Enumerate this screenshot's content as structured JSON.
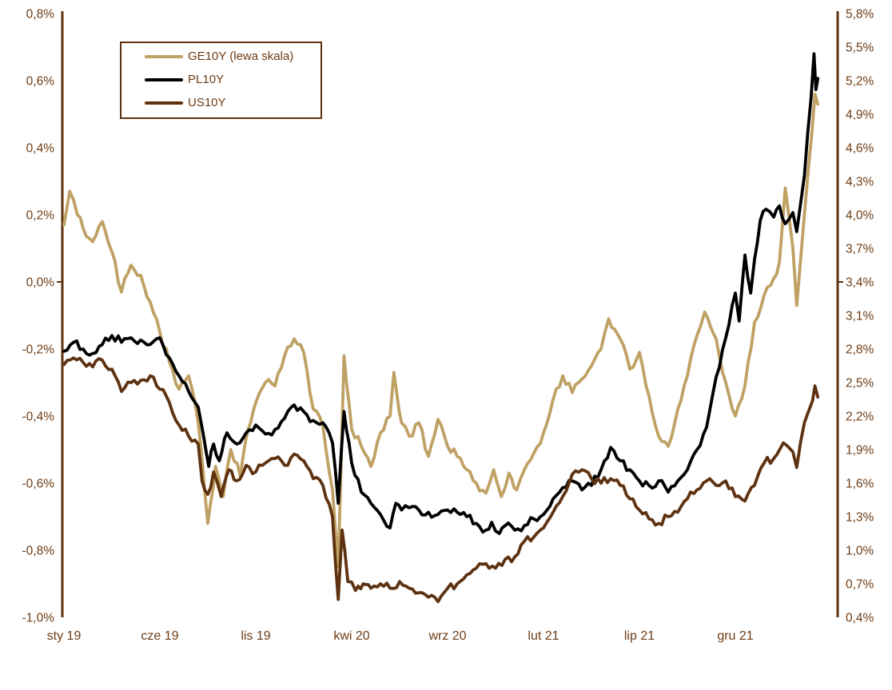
{
  "chart_data": {
    "type": "line",
    "title": "",
    "colors": {
      "axis": "#5E3210",
      "text": "#6E3C14",
      "background": "#FFFFFF"
    },
    "left_axis": {
      "labels": [
        "0,8%",
        "0,6%",
        "0,4%",
        "0,2%",
        "0,0%",
        "-0,2%",
        "-0,4%",
        "-0,6%",
        "-0,8%",
        "-1,0%"
      ],
      "max": 0.8,
      "min": -1.0,
      "step": 0.2
    },
    "right_axis": {
      "labels": [
        "5,8%",
        "5,5%",
        "5,2%",
        "4,9%",
        "4,6%",
        "4,3%",
        "4,0%",
        "3,7%",
        "3,4%",
        "3,1%",
        "2,8%",
        "2,5%",
        "2,2%",
        "1,9%",
        "1,6%",
        "1,3%",
        "1,0%",
        "0,7%",
        "0,4%"
      ],
      "max": 5.8,
      "min": 0.4,
      "step": 0.3
    },
    "x_axis": {
      "labels": [
        "sty 19",
        "cze 19",
        "lis 19",
        "kwi 20",
        "wrz 20",
        "lut 21",
        "lip 21",
        "gru 21"
      ],
      "tick_months": [
        0,
        5,
        10,
        15,
        20,
        25,
        30,
        35
      ],
      "start": "sty 19",
      "end_month_offset": 39.3
    },
    "legend": [
      {
        "label": "GE10Y (lewa skala)",
        "color": "#BFA164"
      },
      {
        "label": "PL10Y",
        "color": "#000000"
      },
      {
        "label": "US10Y",
        "color": "#5E3210"
      }
    ],
    "series": [
      {
        "name": "GE10Y",
        "axis": "left",
        "color": "#BFA164",
        "points": [
          [
            0,
            0.17
          ],
          [
            0.3,
            0.27
          ],
          [
            0.7,
            0.2
          ],
          [
            1,
            0.16
          ],
          [
            1.5,
            0.12
          ],
          [
            2,
            0.18
          ],
          [
            2.5,
            0.09
          ],
          [
            3,
            -0.03
          ],
          [
            3.5,
            0.05
          ],
          [
            4,
            0.02
          ],
          [
            4.5,
            -0.06
          ],
          [
            5,
            -0.15
          ],
          [
            5.5,
            -0.24
          ],
          [
            6,
            -0.32
          ],
          [
            6.5,
            -0.28
          ],
          [
            7,
            -0.42
          ],
          [
            7.5,
            -0.72
          ],
          [
            7.9,
            -0.55
          ],
          [
            8.3,
            -0.64
          ],
          [
            8.7,
            -0.5
          ],
          [
            9.2,
            -0.58
          ],
          [
            9.6,
            -0.44
          ],
          [
            10,
            -0.36
          ],
          [
            10.5,
            -0.3
          ],
          [
            11,
            -0.31
          ],
          [
            11.5,
            -0.22
          ],
          [
            12,
            -0.17
          ],
          [
            12.5,
            -0.21
          ],
          [
            13,
            -0.38
          ],
          [
            13.5,
            -0.43
          ],
          [
            14,
            -0.62
          ],
          [
            14.3,
            -0.85
          ],
          [
            14.6,
            -0.22
          ],
          [
            15,
            -0.44
          ],
          [
            15.5,
            -0.49
          ],
          [
            16,
            -0.55
          ],
          [
            16.5,
            -0.45
          ],
          [
            17,
            -0.4
          ],
          [
            17.2,
            -0.27
          ],
          [
            17.6,
            -0.42
          ],
          [
            18,
            -0.46
          ],
          [
            18.5,
            -0.42
          ],
          [
            19,
            -0.52
          ],
          [
            19.5,
            -0.41
          ],
          [
            20,
            -0.49
          ],
          [
            20.5,
            -0.52
          ],
          [
            21,
            -0.56
          ],
          [
            21.5,
            -0.6
          ],
          [
            22,
            -0.63
          ],
          [
            22.4,
            -0.56
          ],
          [
            22.8,
            -0.64
          ],
          [
            23.2,
            -0.57
          ],
          [
            23.6,
            -0.62
          ],
          [
            24,
            -0.56
          ],
          [
            24.5,
            -0.51
          ],
          [
            25,
            -0.45
          ],
          [
            25.5,
            -0.35
          ],
          [
            26,
            -0.28
          ],
          [
            26.5,
            -0.33
          ],
          [
            27,
            -0.29
          ],
          [
            27.5,
            -0.25
          ],
          [
            28,
            -0.2
          ],
          [
            28.4,
            -0.11
          ],
          [
            29,
            -0.17
          ],
          [
            29.5,
            -0.26
          ],
          [
            30,
            -0.21
          ],
          [
            30.5,
            -0.34
          ],
          [
            31,
            -0.46
          ],
          [
            31.5,
            -0.49
          ],
          [
            32,
            -0.38
          ],
          [
            32.5,
            -0.28
          ],
          [
            33,
            -0.16
          ],
          [
            33.4,
            -0.09
          ],
          [
            34,
            -0.17
          ],
          [
            34.5,
            -0.3
          ],
          [
            35,
            -0.4
          ],
          [
            35.5,
            -0.31
          ],
          [
            36,
            -0.12
          ],
          [
            36.5,
            -0.04
          ],
          [
            37,
            0.01
          ],
          [
            37.3,
            0.06
          ],
          [
            37.6,
            0.28
          ],
          [
            38,
            0.1
          ],
          [
            38.2,
            -0.07
          ],
          [
            38.6,
            0.2
          ],
          [
            39,
            0.45
          ],
          [
            39.15,
            0.56
          ],
          [
            39.3,
            0.53
          ]
        ]
      },
      {
        "name": "PL10Y",
        "axis": "right",
        "color": "#000000",
        "points": [
          [
            0,
            2.78
          ],
          [
            0.5,
            2.86
          ],
          [
            1,
            2.8
          ],
          [
            1.5,
            2.76
          ],
          [
            2,
            2.84
          ],
          [
            2.5,
            2.92
          ],
          [
            3,
            2.86
          ],
          [
            3.5,
            2.9
          ],
          [
            4,
            2.88
          ],
          [
            4.5,
            2.84
          ],
          [
            5,
            2.9
          ],
          [
            5.5,
            2.72
          ],
          [
            6,
            2.56
          ],
          [
            6.5,
            2.42
          ],
          [
            7,
            2.28
          ],
          [
            7.3,
            2.0
          ],
          [
            7.55,
            1.75
          ],
          [
            7.8,
            1.95
          ],
          [
            8.1,
            1.8
          ],
          [
            8.5,
            2.05
          ],
          [
            9,
            1.95
          ],
          [
            9.5,
            2.05
          ],
          [
            10,
            2.12
          ],
          [
            10.5,
            2.04
          ],
          [
            11,
            2.08
          ],
          [
            11.5,
            2.18
          ],
          [
            12,
            2.3
          ],
          [
            12.5,
            2.24
          ],
          [
            13,
            2.16
          ],
          [
            13.5,
            2.14
          ],
          [
            14,
            1.96
          ],
          [
            14.3,
            1.42
          ],
          [
            14.6,
            2.24
          ],
          [
            15,
            1.78
          ],
          [
            15.5,
            1.52
          ],
          [
            16,
            1.42
          ],
          [
            16.5,
            1.32
          ],
          [
            17,
            1.2
          ],
          [
            17.3,
            1.42
          ],
          [
            17.6,
            1.36
          ],
          [
            18,
            1.38
          ],
          [
            18.5,
            1.36
          ],
          [
            19,
            1.34
          ],
          [
            19.5,
            1.32
          ],
          [
            20,
            1.36
          ],
          [
            20.5,
            1.34
          ],
          [
            21,
            1.3
          ],
          [
            21.5,
            1.24
          ],
          [
            22,
            1.18
          ],
          [
            22.3,
            1.25
          ],
          [
            22.7,
            1.15
          ],
          [
            23,
            1.22
          ],
          [
            23.5,
            1.18
          ],
          [
            24,
            1.22
          ],
          [
            24.5,
            1.28
          ],
          [
            25,
            1.32
          ],
          [
            25.5,
            1.46
          ],
          [
            26,
            1.56
          ],
          [
            26.5,
            1.62
          ],
          [
            27,
            1.54
          ],
          [
            27.5,
            1.58
          ],
          [
            28,
            1.72
          ],
          [
            28.5,
            1.92
          ],
          [
            29,
            1.8
          ],
          [
            29.5,
            1.72
          ],
          [
            30,
            1.62
          ],
          [
            30.5,
            1.58
          ],
          [
            31,
            1.62
          ],
          [
            31.5,
            1.52
          ],
          [
            32,
            1.62
          ],
          [
            32.5,
            1.72
          ],
          [
            33,
            1.9
          ],
          [
            33.5,
            2.1
          ],
          [
            34,
            2.55
          ],
          [
            34.5,
            2.9
          ],
          [
            35,
            3.3
          ],
          [
            35.2,
            3.05
          ],
          [
            35.5,
            3.64
          ],
          [
            35.8,
            3.3
          ],
          [
            36,
            3.6
          ],
          [
            36.3,
            3.95
          ],
          [
            36.6,
            4.05
          ],
          [
            37,
            3.98
          ],
          [
            37.3,
            4.08
          ],
          [
            37.6,
            3.92
          ],
          [
            38,
            4.02
          ],
          [
            38.2,
            3.85
          ],
          [
            38.6,
            4.35
          ],
          [
            38.95,
            5.05
          ],
          [
            39.1,
            5.44
          ],
          [
            39.2,
            5.12
          ],
          [
            39.3,
            5.22
          ]
        ]
      },
      {
        "name": "US10Y",
        "axis": "right",
        "color": "#5E3210",
        "points": [
          [
            0,
            2.66
          ],
          [
            0.5,
            2.72
          ],
          [
            1,
            2.68
          ],
          [
            1.5,
            2.64
          ],
          [
            2,
            2.7
          ],
          [
            2.5,
            2.62
          ],
          [
            3,
            2.42
          ],
          [
            3.5,
            2.5
          ],
          [
            4,
            2.52
          ],
          [
            4.5,
            2.56
          ],
          [
            5,
            2.44
          ],
          [
            5.5,
            2.32
          ],
          [
            6,
            2.12
          ],
          [
            6.5,
            2.02
          ],
          [
            7,
            1.95
          ],
          [
            7.2,
            1.62
          ],
          [
            7.5,
            1.5
          ],
          [
            7.8,
            1.7
          ],
          [
            8.2,
            1.48
          ],
          [
            8.6,
            1.72
          ],
          [
            9,
            1.62
          ],
          [
            9.5,
            1.76
          ],
          [
            10,
            1.7
          ],
          [
            10.5,
            1.78
          ],
          [
            11,
            1.82
          ],
          [
            11.5,
            1.76
          ],
          [
            12,
            1.86
          ],
          [
            12.5,
            1.8
          ],
          [
            13,
            1.64
          ],
          [
            13.5,
            1.58
          ],
          [
            14,
            1.3
          ],
          [
            14.3,
            0.56
          ],
          [
            14.5,
            1.18
          ],
          [
            14.8,
            0.72
          ],
          [
            15.2,
            0.64
          ],
          [
            15.6,
            0.7
          ],
          [
            16,
            0.66
          ],
          [
            16.5,
            0.7
          ],
          [
            17,
            0.66
          ],
          [
            17.5,
            0.72
          ],
          [
            18,
            0.66
          ],
          [
            18.5,
            0.62
          ],
          [
            19,
            0.58
          ],
          [
            19.5,
            0.54
          ],
          [
            20,
            0.66
          ],
          [
            20.5,
            0.7
          ],
          [
            21,
            0.78
          ],
          [
            21.5,
            0.84
          ],
          [
            22,
            0.88
          ],
          [
            22.5,
            0.84
          ],
          [
            23,
            0.92
          ],
          [
            23.5,
            0.94
          ],
          [
            24,
            1.08
          ],
          [
            24.5,
            1.12
          ],
          [
            25,
            1.2
          ],
          [
            25.5,
            1.34
          ],
          [
            26,
            1.48
          ],
          [
            26.5,
            1.68
          ],
          [
            27,
            1.72
          ],
          [
            27.5,
            1.64
          ],
          [
            28,
            1.6
          ],
          [
            28.5,
            1.64
          ],
          [
            29,
            1.58
          ],
          [
            29.5,
            1.46
          ],
          [
            30,
            1.36
          ],
          [
            30.5,
            1.28
          ],
          [
            31,
            1.24
          ],
          [
            31.5,
            1.3
          ],
          [
            32,
            1.34
          ],
          [
            32.5,
            1.46
          ],
          [
            33,
            1.54
          ],
          [
            33.5,
            1.62
          ],
          [
            34,
            1.58
          ],
          [
            34.5,
            1.62
          ],
          [
            35,
            1.48
          ],
          [
            35.5,
            1.44
          ],
          [
            36,
            1.58
          ],
          [
            36.5,
            1.78
          ],
          [
            37,
            1.82
          ],
          [
            37.5,
            1.96
          ],
          [
            38,
            1.88
          ],
          [
            38.2,
            1.74
          ],
          [
            38.6,
            2.14
          ],
          [
            38.9,
            2.28
          ],
          [
            39.15,
            2.47
          ],
          [
            39.3,
            2.37
          ]
        ]
      }
    ]
  }
}
